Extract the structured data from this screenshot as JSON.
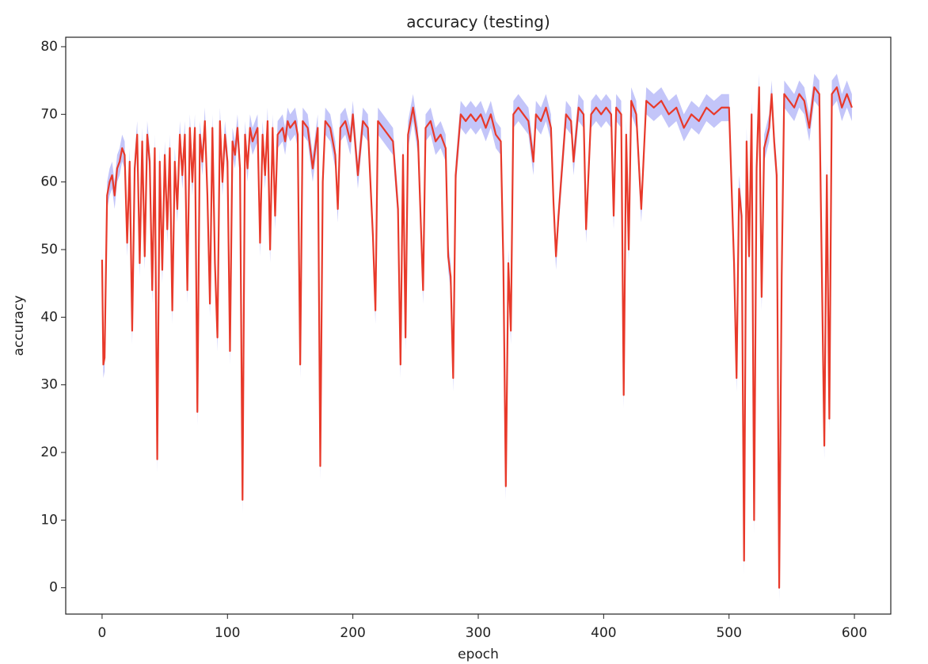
{
  "chart_data": {
    "type": "line",
    "title": "accuracy (testing)",
    "x_label": "epoch",
    "y_label": "accuracy",
    "color": "#e8392a",
    "band_color": "#a9adf7",
    "band_width": 2,
    "xlim": [
      -29,
      629
    ],
    "ylim": [
      -3.9,
      81.4
    ],
    "xticks": [
      0,
      100,
      200,
      300,
      400,
      500,
      600
    ],
    "yticks": [
      0,
      10,
      20,
      30,
      40,
      50,
      60,
      70,
      80
    ],
    "x": [
      0,
      1,
      2,
      4,
      6,
      8,
      10,
      12,
      14,
      16,
      18,
      20,
      22,
      24,
      26,
      28,
      30,
      32,
      34,
      36,
      38,
      40,
      42,
      44,
      46,
      48,
      50,
      52,
      54,
      56,
      58,
      60,
      62,
      64,
      66,
      68,
      70,
      72,
      74,
      76,
      78,
      80,
      82,
      84,
      86,
      88,
      90,
      92,
      94,
      96,
      98,
      100,
      102,
      104,
      106,
      108,
      110,
      112,
      114,
      116,
      118,
      120,
      124,
      126,
      128,
      130,
      132,
      134,
      136,
      138,
      140,
      144,
      146,
      148,
      150,
      154,
      156,
      158,
      160,
      164,
      168,
      172,
      174,
      176,
      178,
      182,
      186,
      188,
      190,
      194,
      198,
      200,
      204,
      208,
      212,
      216,
      218,
      220,
      224,
      228,
      232,
      236,
      238,
      240,
      242,
      244,
      248,
      252,
      256,
      258,
      262,
      266,
      270,
      274,
      276,
      278,
      280,
      282,
      286,
      290,
      294,
      298,
      302,
      306,
      310,
      314,
      318,
      320,
      322,
      324,
      326,
      328,
      332,
      336,
      340,
      344,
      346,
      350,
      354,
      358,
      360,
      362,
      364,
      366,
      370,
      374,
      376,
      380,
      384,
      386,
      390,
      394,
      398,
      402,
      406,
      408,
      410,
      414,
      416,
      418,
      420,
      422,
      426,
      430,
      434,
      440,
      446,
      452,
      458,
      464,
      470,
      476,
      482,
      488,
      494,
      500,
      504,
      506,
      508,
      510,
      512,
      514,
      516,
      518,
      520,
      522,
      524,
      526,
      528,
      532,
      534,
      536,
      538,
      540,
      542,
      544,
      548,
      552,
      556,
      560,
      564,
      568,
      572,
      576,
      578,
      580,
      582,
      586,
      590,
      594,
      598
    ],
    "values": [
      48.5,
      33,
      34,
      58,
      60,
      61,
      58,
      62,
      63,
      65,
      64,
      51,
      63,
      38,
      62,
      67,
      48,
      66,
      49,
      67,
      63,
      44,
      65,
      19,
      63,
      47,
      64,
      53,
      65,
      41,
      63,
      56,
      67,
      61,
      67,
      44,
      68,
      60,
      68,
      26,
      67,
      63,
      69,
      58,
      42,
      68,
      48,
      37,
      69,
      60,
      67,
      63,
      35,
      66,
      64,
      68,
      62,
      13,
      67,
      62,
      68,
      66,
      68,
      51,
      67,
      61,
      69,
      50,
      68,
      55,
      67,
      68,
      66,
      69,
      68,
      69,
      67,
      33,
      69,
      68,
      62,
      68,
      18,
      60,
      69,
      68,
      64,
      56,
      68,
      69,
      66,
      70,
      61,
      69,
      68,
      52,
      41,
      69,
      68,
      67,
      66,
      56,
      33,
      64,
      37,
      67,
      71,
      66,
      44,
      68,
      69,
      66,
      67,
      65,
      49,
      46,
      31,
      61,
      70,
      69,
      70,
      69,
      70,
      68,
      70,
      67,
      66,
      48,
      15,
      48,
      38,
      70,
      71,
      70,
      69,
      63,
      70,
      69,
      71,
      68,
      57,
      49,
      55,
      60,
      70,
      69,
      63,
      71,
      70,
      53,
      70,
      71,
      70,
      71,
      70,
      55,
      71,
      70,
      28.5,
      67,
      50,
      72,
      70,
      56,
      72,
      71,
      72,
      70,
      71,
      68,
      70,
      69,
      71,
      70,
      71,
      71,
      48,
      31,
      59,
      55,
      4,
      66,
      49,
      70,
      10,
      62,
      74,
      43,
      65,
      68,
      73,
      66,
      61,
      0,
      46,
      73,
      72,
      71,
      73,
      72,
      68,
      74,
      73,
      21,
      61,
      25,
      73,
      74,
      71,
      73,
      71
    ]
  }
}
